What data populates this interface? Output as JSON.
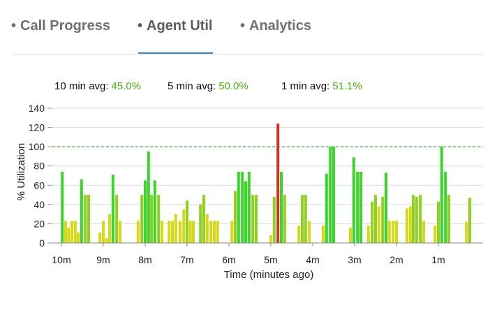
{
  "tabs": [
    {
      "bullet": "•",
      "label": "Call Progress",
      "active": false
    },
    {
      "bullet": "•",
      "label": "Agent Util",
      "active": true
    },
    {
      "bullet": "•",
      "label": "Analytics",
      "active": false
    }
  ],
  "averages": [
    {
      "label": "10 min avg:",
      "value": "45.0%"
    },
    {
      "label": "5 min avg:",
      "value": "50.0%"
    },
    {
      "label": "1 min avg:",
      "value": "51.1%"
    }
  ],
  "colors": {
    "avg_value": "#4caf0f",
    "threshold_line": "#1a9e1a",
    "bar_red": "#d92b2b",
    "bar_green": "#3bd62a",
    "bar_yellowgreen": "#8fd11f",
    "bar_yellow": "#d8d81a",
    "gridline": "#dcdcdc",
    "tab_underline": "#2b8ae6"
  },
  "chart_data": {
    "type": "bar",
    "xlabel": "Time (minutes ago)",
    "ylabel": "% Utilization",
    "ylim": [
      0,
      140
    ],
    "yticks": [
      0,
      20,
      40,
      60,
      80,
      100,
      120,
      140
    ],
    "xlim": [
      10,
      0
    ],
    "xticks": [
      {
        "value": 10,
        "label": "10m"
      },
      {
        "value": 9,
        "label": "9m"
      },
      {
        "value": 8,
        "label": "8m"
      },
      {
        "value": 7,
        "label": "7m"
      },
      {
        "value": 6,
        "label": "6m"
      },
      {
        "value": 5,
        "label": "5m"
      },
      {
        "value": 4,
        "label": "4m"
      },
      {
        "value": 3,
        "label": "3m"
      },
      {
        "value": 2,
        "label": "2m"
      },
      {
        "value": 1,
        "label": "1m"
      }
    ],
    "threshold": 100,
    "grid": true,
    "bars": [
      {
        "x": 9.98,
        "y": 74
      },
      {
        "x": 9.9,
        "y": 23
      },
      {
        "x": 9.83,
        "y": 16
      },
      {
        "x": 9.75,
        "y": 23
      },
      {
        "x": 9.67,
        "y": 23
      },
      {
        "x": 9.6,
        "y": 11
      },
      {
        "x": 9.52,
        "y": 66
      },
      {
        "x": 9.43,
        "y": 50
      },
      {
        "x": 9.35,
        "y": 50
      },
      {
        "x": 9.08,
        "y": 11
      },
      {
        "x": 9.0,
        "y": 23
      },
      {
        "x": 8.92,
        "y": 5
      },
      {
        "x": 8.85,
        "y": 30
      },
      {
        "x": 8.77,
        "y": 71
      },
      {
        "x": 8.68,
        "y": 50
      },
      {
        "x": 8.6,
        "y": 23
      },
      {
        "x": 8.17,
        "y": 23
      },
      {
        "x": 8.08,
        "y": 50
      },
      {
        "x": 8.0,
        "y": 65
      },
      {
        "x": 7.92,
        "y": 95
      },
      {
        "x": 7.85,
        "y": 50
      },
      {
        "x": 7.77,
        "y": 65
      },
      {
        "x": 7.68,
        "y": 50
      },
      {
        "x": 7.6,
        "y": 23
      },
      {
        "x": 7.43,
        "y": 23
      },
      {
        "x": 7.35,
        "y": 23
      },
      {
        "x": 7.27,
        "y": 30
      },
      {
        "x": 7.17,
        "y": 23
      },
      {
        "x": 7.08,
        "y": 35
      },
      {
        "x": 7.0,
        "y": 44
      },
      {
        "x": 6.92,
        "y": 23
      },
      {
        "x": 6.85,
        "y": 23
      },
      {
        "x": 6.68,
        "y": 40
      },
      {
        "x": 6.6,
        "y": 50
      },
      {
        "x": 6.52,
        "y": 30
      },
      {
        "x": 6.43,
        "y": 23
      },
      {
        "x": 6.35,
        "y": 23
      },
      {
        "x": 6.27,
        "y": 23
      },
      {
        "x": 5.93,
        "y": 23
      },
      {
        "x": 5.85,
        "y": 54
      },
      {
        "x": 5.77,
        "y": 74
      },
      {
        "x": 5.68,
        "y": 74
      },
      {
        "x": 5.6,
        "y": 64
      },
      {
        "x": 5.52,
        "y": 74
      },
      {
        "x": 5.43,
        "y": 50
      },
      {
        "x": 5.35,
        "y": 50
      },
      {
        "x": 5.0,
        "y": 8
      },
      {
        "x": 4.92,
        "y": 48
      },
      {
        "x": 4.83,
        "y": 124
      },
      {
        "x": 4.75,
        "y": 74
      },
      {
        "x": 4.67,
        "y": 50
      },
      {
        "x": 4.33,
        "y": 18
      },
      {
        "x": 4.25,
        "y": 50
      },
      {
        "x": 4.17,
        "y": 50
      },
      {
        "x": 4.08,
        "y": 23
      },
      {
        "x": 3.75,
        "y": 18
      },
      {
        "x": 3.67,
        "y": 72
      },
      {
        "x": 3.58,
        "y": 100
      },
      {
        "x": 3.5,
        "y": 100
      },
      {
        "x": 3.1,
        "y": 16
      },
      {
        "x": 3.02,
        "y": 89
      },
      {
        "x": 2.93,
        "y": 74
      },
      {
        "x": 2.85,
        "y": 74
      },
      {
        "x": 2.67,
        "y": 18
      },
      {
        "x": 2.58,
        "y": 43
      },
      {
        "x": 2.5,
        "y": 50
      },
      {
        "x": 2.42,
        "y": 38
      },
      {
        "x": 2.33,
        "y": 48
      },
      {
        "x": 2.25,
        "y": 73
      },
      {
        "x": 2.17,
        "y": 23
      },
      {
        "x": 2.08,
        "y": 23
      },
      {
        "x": 2.0,
        "y": 23
      },
      {
        "x": 1.75,
        "y": 36
      },
      {
        "x": 1.67,
        "y": 38
      },
      {
        "x": 1.6,
        "y": 50
      },
      {
        "x": 1.52,
        "y": 48
      },
      {
        "x": 1.43,
        "y": 50
      },
      {
        "x": 1.35,
        "y": 23
      },
      {
        "x": 1.08,
        "y": 18
      },
      {
        "x": 1.0,
        "y": 43
      },
      {
        "x": 0.92,
        "y": 100
      },
      {
        "x": 0.83,
        "y": 74
      },
      {
        "x": 0.75,
        "y": 50
      },
      {
        "x": 0.33,
        "y": 22
      },
      {
        "x": 0.25,
        "y": 47
      }
    ]
  }
}
